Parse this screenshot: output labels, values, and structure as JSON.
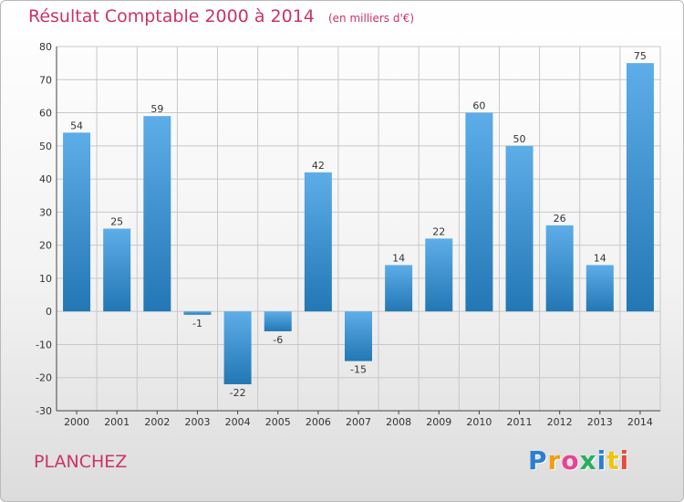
{
  "header": {
    "title": "Résultat Comptable 2000 à 2014",
    "unit": "(en milliers d'€)"
  },
  "footer": {
    "commune": "PLANCHEZ",
    "logo_letters": [
      "P",
      "r",
      "o",
      "x",
      "i",
      "t",
      "i"
    ]
  },
  "colors": {
    "title": "#cc3366",
    "bar_top": "#5dade8",
    "bar_bottom": "#2277b4",
    "grid": "#c8c8c8"
  },
  "chart_data": {
    "type": "bar",
    "title": "Résultat Comptable 2000 à 2014",
    "ylabel": "",
    "xlabel": "",
    "categories": [
      "2000",
      "2001",
      "2002",
      "2003",
      "2004",
      "2005",
      "2006",
      "2007",
      "2008",
      "2009",
      "2010",
      "2011",
      "2012",
      "2013",
      "2014"
    ],
    "values": [
      54,
      25,
      59,
      -1,
      -22,
      -6,
      42,
      -15,
      14,
      22,
      60,
      50,
      26,
      14,
      75
    ],
    "ylim": [
      -30,
      80
    ],
    "yticks": [
      -30,
      -20,
      -10,
      0,
      10,
      20,
      30,
      40,
      50,
      60,
      70,
      80
    ],
    "grid": true,
    "data_labels": true
  }
}
